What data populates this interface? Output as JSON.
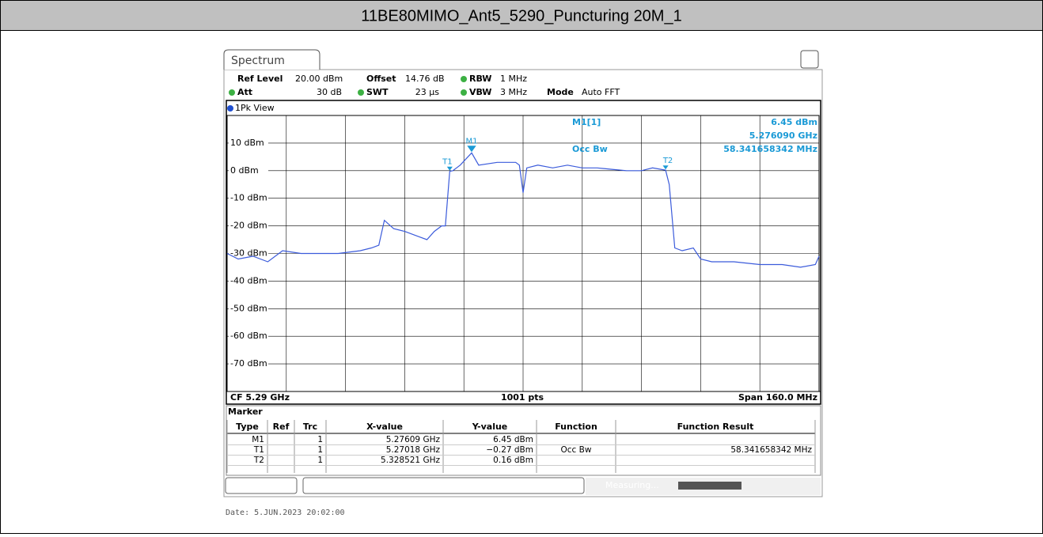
{
  "title": "11BE80MIMO_Ant5_5290_Puncturing 20M_1",
  "tab": "Spectrum",
  "settings": [
    {
      "label": "Ref Level",
      "value": "20.00 dBm"
    },
    {
      "label": "Offset",
      "value": "14.76 dB"
    },
    {
      "label": "RBW",
      "value": "1 MHz"
    },
    {
      "label": "Att",
      "value": "30 dB"
    },
    {
      "label": "SWT",
      "value": "23 µs"
    },
    {
      "label": "VBW",
      "value": "3 MHz"
    },
    {
      "label": "Mode",
      "value": "Auto FFT"
    }
  ],
  "chart_data": {
    "type": "line",
    "view_label": "1Pk View",
    "xlim": [
      5.21,
      5.37
    ],
    "ylim": [
      -80,
      20
    ],
    "yticks": [
      {
        "value": 10,
        "label": "10 dBm"
      },
      {
        "value": 0,
        "label": "0 dBm"
      },
      {
        "value": -10,
        "label": "-10 dBm"
      },
      {
        "value": -20,
        "label": "-20 dBm"
      },
      {
        "value": -30,
        "label": "-30 dBm"
      },
      {
        "value": -40,
        "label": "-40 dBm"
      },
      {
        "value": -50,
        "label": "-50 dBm"
      },
      {
        "value": -60,
        "label": "-60 dBm"
      },
      {
        "value": -70,
        "label": "-70 dBm"
      }
    ],
    "grid": true,
    "series": [
      {
        "color": "#3b5bdb",
        "x": [
          5.21,
          5.213,
          5.217,
          5.221,
          5.225,
          5.23,
          5.24,
          5.246,
          5.249,
          5.251,
          5.2525,
          5.255,
          5.258,
          5.262,
          5.264,
          5.266,
          5.268,
          5.269,
          5.27018,
          5.271,
          5.273,
          5.27609,
          5.278,
          5.283,
          5.288,
          5.289,
          5.29,
          5.291,
          5.294,
          5.298,
          5.302,
          5.306,
          5.31,
          5.314,
          5.318,
          5.322,
          5.325,
          5.328521,
          5.3295,
          5.331,
          5.333,
          5.336,
          5.338,
          5.341,
          5.347,
          5.354,
          5.36,
          5.365,
          5.369,
          5.37
        ],
        "values": [
          -30,
          -32,
          -31,
          -33,
          -29,
          -30,
          -30,
          -29,
          -28,
          -27,
          -18,
          -21,
          -22,
          -24,
          -25,
          -22,
          -20,
          -20,
          -0.27,
          0,
          2,
          6.45,
          2,
          3,
          3,
          2,
          -8,
          1,
          2,
          1,
          2,
          1,
          1,
          0.5,
          0,
          0,
          1,
          0.16,
          -5,
          -28,
          -29,
          -28,
          -32,
          -33,
          -33,
          -34,
          -34,
          -35,
          -34,
          -31
        ]
      }
    ],
    "markers": [
      {
        "name": "M1",
        "x": 5.27609,
        "y": 6.45
      },
      {
        "name": "T1",
        "x": 5.27018,
        "y": -0.27
      },
      {
        "name": "T2",
        "x": 5.328521,
        "y": 0.16
      }
    ],
    "marker_info": {
      "m1": "M1[1]",
      "m1_level": "6.45 dBm",
      "m1_freq": "5.276090 GHz",
      "function": "Occ Bw",
      "result": "58.341658342 MHz"
    },
    "footer": {
      "center_freq": "CF 5.29 GHz",
      "points": "1001 pts",
      "span": "Span 160.0 MHz"
    }
  },
  "marker_table": {
    "title": "Marker",
    "headers": [
      "Type",
      "Ref",
      "Trc",
      "X-value",
      "Y-value",
      "Function",
      "Function Result"
    ],
    "rows": [
      {
        "type": "M1",
        "trc": "1",
        "x": "5.27609 GHz",
        "y": "6.45 dBm"
      },
      {
        "type": "T1",
        "trc": "1",
        "x": "5.27018 GHz",
        "y": "−0.27 dBm",
        "function": "Occ Bw",
        "result": "58.341658342 MHz"
      },
      {
        "type": "T2",
        "trc": "1",
        "x": "5.328521 GHz",
        "y": "0.16 dBm"
      }
    ]
  },
  "status": "Measuring...",
  "date": "Date: 5.JUN.2023  20:02:00"
}
